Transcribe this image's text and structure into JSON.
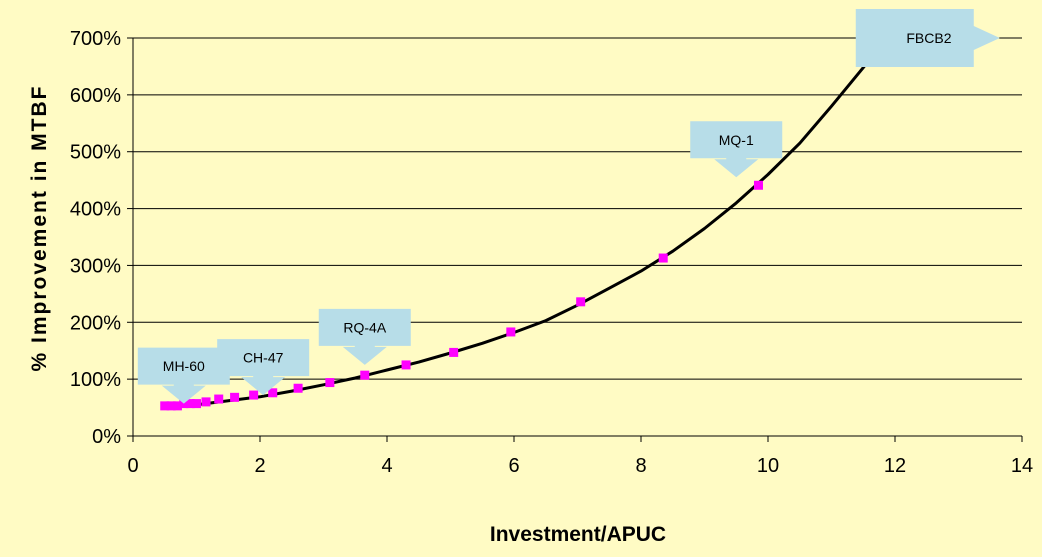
{
  "chart_data": {
    "type": "scatter",
    "title": "",
    "xlabel": "Investment/APUC",
    "ylabel": "% Improvement in MTBF",
    "xlim": [
      0,
      14
    ],
    "ylim": [
      0,
      700
    ],
    "x_ticks": [
      "0",
      "2",
      "4",
      "6",
      "8",
      "10",
      "12",
      "14"
    ],
    "y_ticks": [
      "0%",
      "100%",
      "200%",
      "300%",
      "400%",
      "500%",
      "600%",
      "700%"
    ],
    "grid": "horizontal",
    "background_color": "#fffbc4",
    "plot_background_color": "#fffbc4",
    "series": [
      {
        "marker_color": "#ff00ff",
        "points": [
          {
            "x": 0.5,
            "y": 53
          },
          {
            "x": 0.6,
            "y": 53
          },
          {
            "x": 0.7,
            "y": 53
          },
          {
            "x": 0.8,
            "y": 57
          },
          {
            "x": 0.9,
            "y": 57
          },
          {
            "x": 1.0,
            "y": 57
          },
          {
            "x": 1.15,
            "y": 60
          },
          {
            "x": 1.35,
            "y": 65
          },
          {
            "x": 1.6,
            "y": 68
          },
          {
            "x": 1.9,
            "y": 72
          },
          {
            "x": 2.2,
            "y": 76
          },
          {
            "x": 2.6,
            "y": 84
          },
          {
            "x": 3.1,
            "y": 94
          },
          {
            "x": 3.65,
            "y": 107
          },
          {
            "x": 4.3,
            "y": 125
          },
          {
            "x": 5.05,
            "y": 147
          },
          {
            "x": 5.95,
            "y": 183
          },
          {
            "x": 7.05,
            "y": 236
          },
          {
            "x": 8.35,
            "y": 313
          },
          {
            "x": 9.85,
            "y": 441
          },
          {
            "x": 11.6,
            "y": 660
          }
        ]
      }
    ],
    "trendline": {
      "color": "#000000",
      "points": [
        {
          "x": 0.5,
          "y": 50
        },
        {
          "x": 1.0,
          "y": 55
        },
        {
          "x": 1.5,
          "y": 62
        },
        {
          "x": 2.0,
          "y": 69
        },
        {
          "x": 2.5,
          "y": 79
        },
        {
          "x": 3.0,
          "y": 90
        },
        {
          "x": 3.5,
          "y": 102
        },
        {
          "x": 4.0,
          "y": 116
        },
        {
          "x": 4.5,
          "y": 130
        },
        {
          "x": 5.0,
          "y": 146
        },
        {
          "x": 5.5,
          "y": 163
        },
        {
          "x": 6.0,
          "y": 182
        },
        {
          "x": 6.5,
          "y": 203
        },
        {
          "x": 7.0,
          "y": 230
        },
        {
          "x": 7.5,
          "y": 260
        },
        {
          "x": 8.0,
          "y": 290
        },
        {
          "x": 8.5,
          "y": 325
        },
        {
          "x": 9.0,
          "y": 365
        },
        {
          "x": 9.5,
          "y": 410
        },
        {
          "x": 10.0,
          "y": 460
        },
        {
          "x": 10.5,
          "y": 515
        },
        {
          "x": 11.0,
          "y": 580
        },
        {
          "x": 11.5,
          "y": 648
        },
        {
          "x": 11.6,
          "y": 662
        }
      ]
    },
    "annotations": [
      {
        "text": "MH-60",
        "direction": "down",
        "target": {
          "x": 0.8,
          "y": 57
        }
      },
      {
        "text": "CH-47",
        "direction": "down",
        "target": {
          "x": 2.05,
          "y": 72
        }
      },
      {
        "text": "RQ-4A",
        "direction": "down",
        "target": {
          "x": 3.65,
          "y": 125
        }
      },
      {
        "text": "MQ-1",
        "direction": "down",
        "target": {
          "x": 9.5,
          "y": 455
        }
      },
      {
        "text": "FBCB2",
        "direction": "right",
        "target": {
          "x": 13.65,
          "y": 700
        }
      }
    ],
    "callout_color": "#b7dde8"
  }
}
